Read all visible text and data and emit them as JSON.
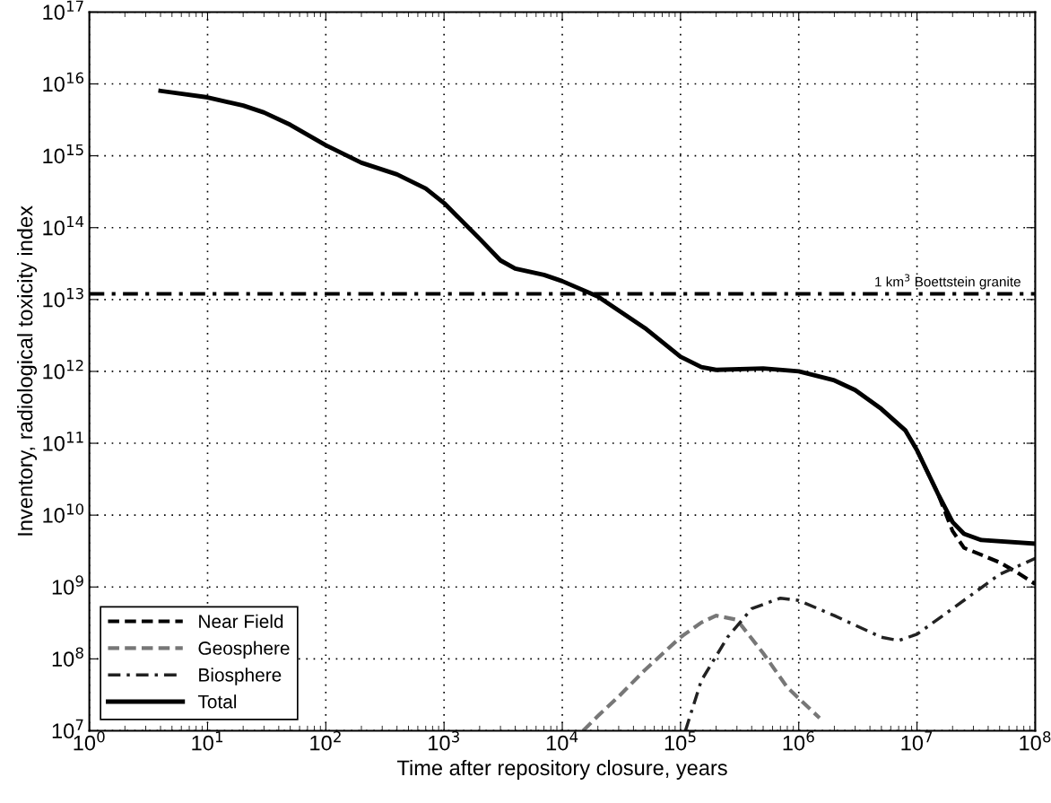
{
  "chart_data": {
    "type": "line",
    "xlabel": "Time after repository closure, years",
    "ylabel": "Inventory, radiological toxicity index",
    "log": "xy",
    "grid": true,
    "legend": "bottom left",
    "xlim": [
      1,
      100000000
    ],
    "ylim": [
      10000000,
      100000000000000000
    ],
    "xticks": [
      {
        "value": 1,
        "label": "10$^{0}$"
      },
      {
        "value": 10,
        "label": "10$^{1}$"
      },
      {
        "value": 100,
        "label": "10$^{2}$"
      },
      {
        "value": 1000,
        "label": "10$^{3}$"
      },
      {
        "value": 10000,
        "label": "10$^{4}$"
      },
      {
        "value": 100000,
        "label": "10$^{5}$"
      },
      {
        "value": 1000000,
        "label": "10$^{6}$"
      },
      {
        "value": 10000000,
        "label": "10$^{7}$"
      },
      {
        "value": 100000000,
        "label": "10$^{8}$"
      }
    ],
    "yticks": [
      {
        "value": 10000000.0,
        "label": "10$^{7}$"
      },
      {
        "value": 100000000.0,
        "label": "10$^{8}$"
      },
      {
        "value": 1000000000.0,
        "label": "10$^{9}$"
      },
      {
        "value": 10000000000.0,
        "label": "10$^{10}$"
      },
      {
        "value": 100000000000.0,
        "label": "10$^{11}$"
      },
      {
        "value": 1000000000000.0,
        "label": "10$^{12}$"
      },
      {
        "value": 10000000000000.0,
        "label": "10$^{13}$"
      },
      {
        "value": 100000000000000.0,
        "label": "10$^{14}$"
      },
      {
        "value": 1000000000000000.0,
        "label": "10$^{15}$"
      },
      {
        "value": 1e+16,
        "label": "10$^{16}$"
      },
      {
        "value": 1e+17,
        "label": "10$^{17}$"
      }
    ],
    "ref_lines": [
      {
        "axis": "y",
        "value": 12000000000000.0,
        "label": "1 km$^{3}$ Boettstein granite",
        "color": "#000000",
        "line_style": "dashdot"
      }
    ],
    "series": [
      {
        "name": "Near Field",
        "color": "#000000",
        "line_style": "dashed",
        "x": [
          10000000.0,
          15000000.0,
          20000000.0,
          25000000.0,
          35000000.0,
          50000000.0,
          70000000.0,
          100000000.0
        ],
        "values": [
          80000000000.0,
          20000000000.0,
          6000000000.0,
          3500000000.0,
          2800000000.0,
          2200000000.0,
          1600000000.0,
          1100000000.0
        ]
      },
      {
        "name": "Geosphere",
        "color": "#777777",
        "line_style": "dashed",
        "x": [
          15000.0,
          20000.0,
          30000.0,
          50000.0,
          100000.0,
          150000.0,
          200000.0,
          300000.0,
          500000.0,
          800000.0,
          1500000.0
        ],
        "values": [
          10000000.0,
          16000000.0,
          30000000.0,
          70000000.0,
          200000000.0,
          320000000.0,
          400000000.0,
          350000000.0,
          120000000.0,
          40000000.0,
          15000000.0
        ]
      },
      {
        "name": "Biosphere",
        "color": "#222222",
        "line_style": "dashdot",
        "x": [
          110000.0,
          150000.0,
          250000.0,
          400000.0,
          700000.0,
          1000000.0,
          2000000.0,
          5000000.0,
          7000000.0,
          10000000.0,
          20000000.0,
          50000000.0,
          100000000.0
        ],
        "values": [
          10000000.0,
          50000000.0,
          200000000.0,
          500000000.0,
          700000000.0,
          650000000.0,
          400000000.0,
          200000000.0,
          180000000.0,
          220000000.0,
          500000000.0,
          1500000000.0,
          2500000000.0
        ]
      },
      {
        "name": "Total",
        "color": "#000000",
        "line_style": "solid",
        "x": [
          4,
          10,
          20,
          30,
          50,
          100,
          200,
          400,
          700,
          1000,
          2000,
          3000,
          4000,
          7000,
          10000,
          20000,
          50000,
          100000,
          150000,
          200000,
          500000,
          1000000,
          2000000,
          3000000,
          5000000,
          8000000,
          10000000,
          15000000,
          20000000,
          25000000,
          35000000,
          100000000
        ],
        "values": [
          8000000000000000.0,
          6500000000000000.0,
          5000000000000000.0,
          4000000000000000.0,
          2700000000000000.0,
          1400000000000000.0,
          800000000000000.0,
          550000000000000.0,
          350000000000000.0,
          220000000000000.0,
          70000000000000.0,
          35000000000000.0,
          27000000000000.0,
          22000000000000.0,
          18000000000000.0,
          11000000000000.0,
          4000000000000.0,
          1600000000000.0,
          1150000000000.0,
          1050000000000.0,
          1100000000000.0,
          1000000000000.0,
          750000000000.0,
          550000000000.0,
          300000000000.0,
          150000000000.0,
          80000000000.0,
          20000000000.0,
          8000000000.0,
          5500000000.0,
          4500000000.0,
          4000000000.0
        ]
      }
    ]
  }
}
